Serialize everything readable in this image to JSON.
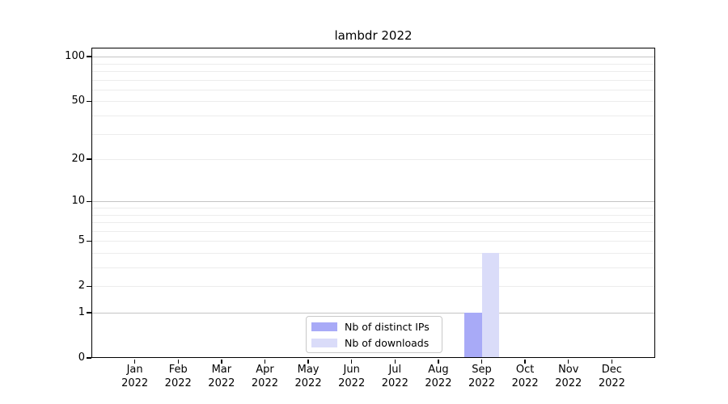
{
  "chart_data": {
    "type": "bar",
    "title": "lambdr 2022",
    "categories": [
      "Jan 2022",
      "Feb 2022",
      "Mar 2022",
      "Apr 2022",
      "May 2022",
      "Jun 2022",
      "Jul 2022",
      "Aug 2022",
      "Sep 2022",
      "Oct 2022",
      "Nov 2022",
      "Dec 2022"
    ],
    "series": [
      {
        "name": "Nb of distinct IPs",
        "color": "#a8aaf7",
        "values": [
          0,
          0,
          0,
          0,
          0,
          0,
          0,
          0,
          1,
          0,
          0,
          0
        ]
      },
      {
        "name": "Nb of downloads",
        "color": "#dadcf9",
        "values": [
          0,
          0,
          0,
          0,
          0,
          0,
          0,
          0,
          4,
          0,
          0,
          0
        ]
      }
    ],
    "xlabel": "",
    "ylabel": "",
    "yscale": "log10(1+v)",
    "ylim": [
      0,
      115
    ],
    "yticks": [
      0,
      1,
      2,
      5,
      10,
      20,
      50,
      100
    ],
    "gridlines_major": [
      1,
      10,
      100
    ],
    "gridlines_minor": [
      2,
      3,
      4,
      5,
      6,
      7,
      8,
      9,
      20,
      30,
      40,
      50,
      60,
      70,
      80,
      90
    ],
    "legend_position": "lower-center",
    "colors": {
      "grid_major": "#c4c4c4",
      "grid_minor": "#ececec",
      "spine": "#000000",
      "background": "#ffffff"
    }
  }
}
